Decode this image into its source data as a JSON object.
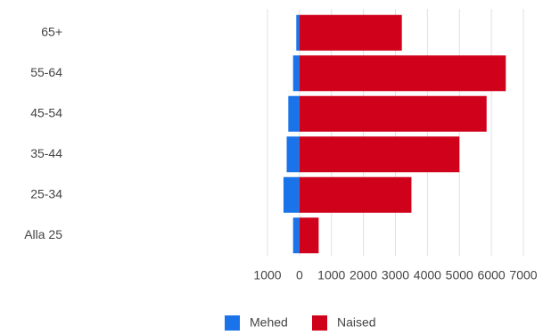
{
  "chart_data": {
    "type": "bar",
    "orientation": "horizontal",
    "stacked": true,
    "categories": [
      "65+",
      "55-64",
      "45-54",
      "35-44",
      "25-34",
      "Alla 25"
    ],
    "series": [
      {
        "name": "Mehed",
        "color": "#1a73e8",
        "values": [
          -100,
          -200,
          -350,
          -400,
          -500,
          -200
        ]
      },
      {
        "name": "Naised",
        "color": "#d0021b",
        "values": [
          3200,
          6450,
          5850,
          5000,
          3500,
          600
        ]
      }
    ],
    "xlim": [
      -1000,
      7000
    ],
    "xticks": [
      {
        "value": -1000,
        "label": "1000"
      },
      0,
      1000,
      2000,
      3000,
      4000,
      5000,
      6000,
      7000
    ],
    "grid": true,
    "legend": "bottom"
  }
}
